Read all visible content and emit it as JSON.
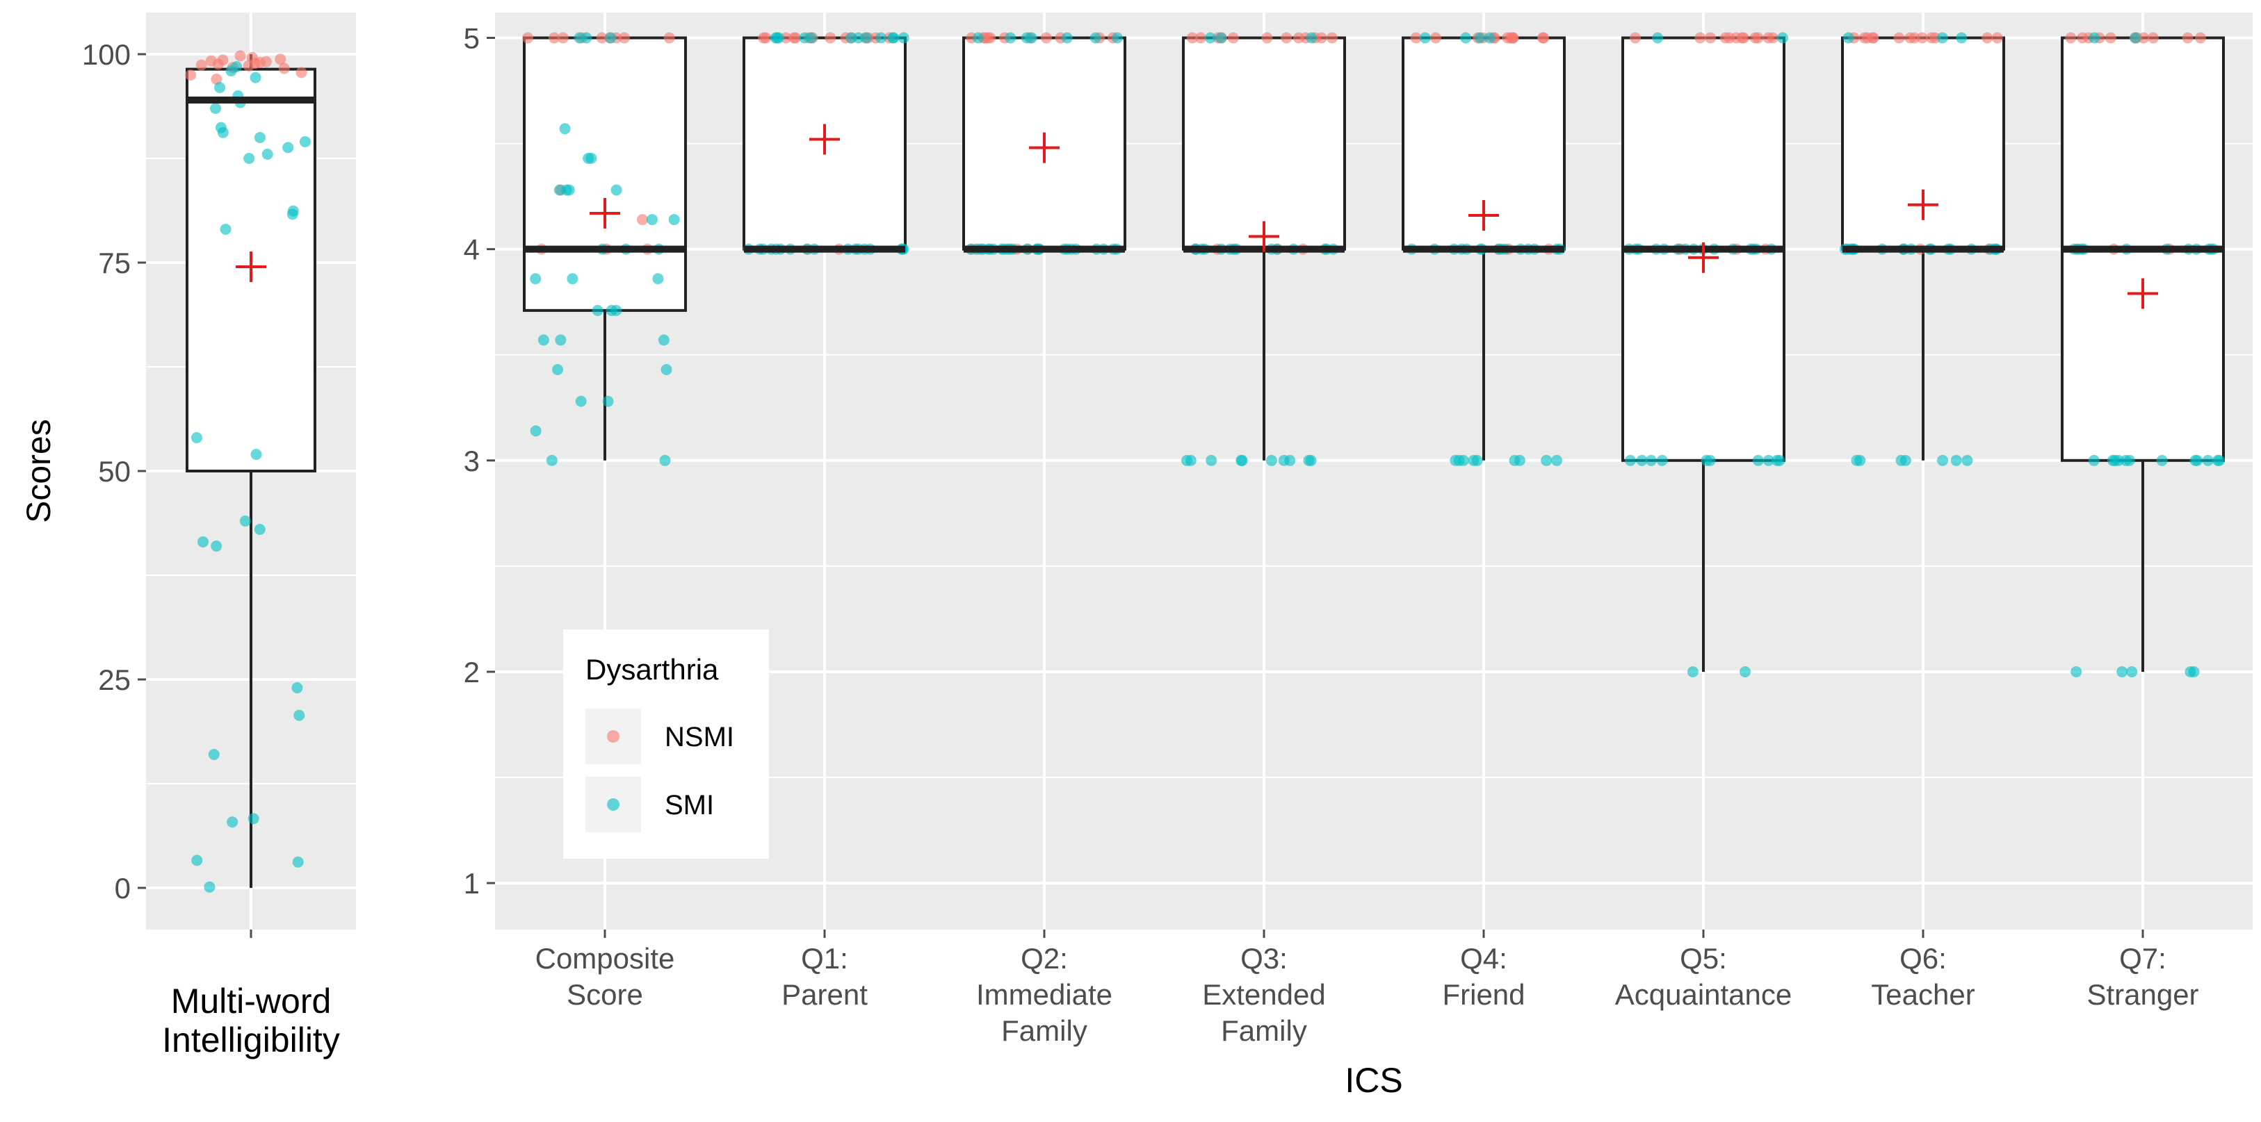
{
  "chart_data": [
    {
      "type": "box",
      "panel": "left",
      "title": "",
      "xlabel": "",
      "ylabel": "Scores",
      "ylim": [
        -5,
        105
      ],
      "yticks": [
        0,
        25,
        50,
        75,
        100
      ],
      "grid": true,
      "categories": [
        {
          "label_lines": [
            "Multi-word",
            "Intelligibility"
          ],
          "box": {
            "min": 0,
            "q1": 50,
            "median": 94.5,
            "q3": 98.2,
            "max": 100,
            "mean": 74.5
          }
        }
      ],
      "points": [
        {
          "group": "NSMI",
          "values": [
            99.2,
            98.8,
            99.0,
            98.6,
            98.9,
            99.1,
            98.4,
            97.8,
            97.5,
            97.0,
            99.4,
            99.6,
            98.7,
            98.3,
            99.3,
            99.8
          ]
        },
        {
          "group": "SMI",
          "values": [
            98.5,
            98.0,
            97.2,
            96.0,
            95.0,
            94.2,
            93.5,
            91.2,
            90.6,
            90.0,
            89.5,
            88.8,
            88.0,
            87.5,
            81.2,
            80.8,
            79.0,
            54.0,
            52.0,
            44.0,
            43.0,
            41.5,
            41.0,
            24.0,
            20.7,
            16.0,
            8.3,
            7.9,
            3.3,
            3.1,
            0.1
          ]
        }
      ]
    },
    {
      "type": "box",
      "panel": "right",
      "title": "",
      "xlabel": "ICS",
      "ylabel": "",
      "ylim": [
        0.78,
        5.12
      ],
      "yticks": [
        1,
        2,
        3,
        4,
        5
      ],
      "grid": true,
      "legend": {
        "title": "Dysarthria",
        "position": "bottom-left",
        "entries": [
          "NSMI",
          "SMI"
        ]
      },
      "categories": [
        {
          "label_lines": [
            "Composite",
            "Score"
          ],
          "box": {
            "min": 3.0,
            "q1": 3.71,
            "median": 4.0,
            "q3": 5.0,
            "max": 5.0,
            "mean": 4.17
          }
        },
        {
          "label_lines": [
            "Q1:",
            "Parent"
          ],
          "box": {
            "min": 4.0,
            "q1": 4.0,
            "median": 4.0,
            "q3": 5.0,
            "max": 5.0,
            "mean": 4.52
          }
        },
        {
          "label_lines": [
            "Q2:",
            "Immediate",
            "Family"
          ],
          "box": {
            "min": 4.0,
            "q1": 4.0,
            "median": 4.0,
            "q3": 5.0,
            "max": 5.0,
            "mean": 4.48
          }
        },
        {
          "label_lines": [
            "Q3:",
            "Extended",
            "Family"
          ],
          "box": {
            "min": 3.0,
            "q1": 4.0,
            "median": 4.0,
            "q3": 5.0,
            "max": 5.0,
            "mean": 4.06
          }
        },
        {
          "label_lines": [
            "Q4:",
            "Friend"
          ],
          "box": {
            "min": 3.0,
            "q1": 4.0,
            "median": 4.0,
            "q3": 5.0,
            "max": 5.0,
            "mean": 4.16
          }
        },
        {
          "label_lines": [
            "Q5:",
            "Acquaintance"
          ],
          "box": {
            "min": 2.0,
            "q1": 3.0,
            "median": 4.0,
            "q3": 5.0,
            "max": 5.0,
            "mean": 3.96
          }
        },
        {
          "label_lines": [
            "Q6:",
            "Teacher"
          ],
          "box": {
            "min": 3.0,
            "q1": 4.0,
            "median": 4.0,
            "q3": 5.0,
            "max": 5.0,
            "mean": 4.21
          }
        },
        {
          "label_lines": [
            "Q7:",
            "Stranger"
          ],
          "box": {
            "min": 2.0,
            "q1": 3.0,
            "median": 4.0,
            "q3": 5.0,
            "max": 5.0,
            "mean": 3.79
          }
        }
      ],
      "points": [
        {
          "category": "Composite Score",
          "group": "NSMI",
          "values": [
            5,
            5,
            5,
            5,
            5,
            5,
            5,
            5,
            5,
            4.28,
            4.14,
            4.0,
            4.0,
            4.0
          ]
        },
        {
          "category": "Composite Score",
          "group": "SMI",
          "values": [
            5,
            5,
            5,
            4.57,
            4.43,
            4.43,
            4.28,
            4.28,
            4.28,
            4.28,
            4.14,
            4.14,
            4.0,
            4.0,
            4.0,
            3.86,
            3.86,
            3.86,
            3.71,
            3.71,
            3.71,
            3.57,
            3.57,
            3.57,
            3.43,
            3.43,
            3.28,
            3.28,
            3.14,
            3.0,
            3.0
          ]
        },
        {
          "category": "Q1: Parent",
          "group": "NSMI",
          "values": [
            5,
            5,
            5,
            5,
            5,
            5,
            5,
            5,
            5,
            5,
            5,
            5,
            5,
            5,
            4,
            4
          ]
        },
        {
          "category": "Q1: Parent",
          "group": "SMI",
          "values": [
            5,
            5,
            5,
            5,
            5,
            5,
            5,
            5,
            5,
            5,
            5,
            5,
            4,
            4,
            4,
            4,
            4,
            4,
            4,
            4,
            4,
            4,
            4,
            4,
            4,
            4,
            4,
            4,
            4
          ]
        },
        {
          "category": "Q2: Immediate Family",
          "group": "NSMI",
          "values": [
            5,
            5,
            5,
            5,
            5,
            5,
            5,
            5,
            5,
            5,
            5,
            4,
            4,
            4,
            4,
            4
          ]
        },
        {
          "category": "Q2: Immediate Family",
          "group": "SMI",
          "values": [
            5,
            5,
            5,
            5,
            5,
            5,
            5,
            4,
            4,
            4,
            4,
            4,
            4,
            4,
            4,
            4,
            4,
            4,
            4,
            4,
            4,
            4,
            4,
            4,
            4,
            4,
            4,
            4,
            4,
            4,
            4,
            4
          ]
        },
        {
          "category": "Q3: Extended Family",
          "group": "NSMI",
          "values": [
            5,
            5,
            5,
            5,
            5,
            5,
            5,
            5,
            5,
            5,
            5,
            5,
            4,
            4,
            4,
            4
          ]
        },
        {
          "category": "Q3: Extended Family",
          "group": "SMI",
          "values": [
            5,
            5,
            5,
            4,
            4,
            4,
            4,
            4,
            4,
            4,
            4,
            4,
            4,
            4,
            4,
            4,
            4,
            3,
            3,
            3,
            3,
            3,
            3,
            3,
            3,
            3,
            3
          ]
        },
        {
          "category": "Q4: Friend",
          "group": "NSMI",
          "values": [
            5,
            5,
            5,
            5,
            5,
            5,
            5,
            5,
            5,
            5,
            5,
            5,
            5,
            4,
            4,
            4
          ]
        },
        {
          "category": "Q4: Friend",
          "group": "SMI",
          "values": [
            5,
            5,
            5,
            5,
            4,
            4,
            4,
            4,
            4,
            4,
            4,
            4,
            4,
            4,
            4,
            4,
            4,
            4,
            4,
            3,
            3,
            3,
            3,
            3,
            3,
            3,
            3,
            3
          ]
        },
        {
          "category": "Q5: Acquaintance",
          "group": "NSMI",
          "values": [
            5,
            5,
            5,
            5,
            5,
            5,
            5,
            5,
            5,
            5,
            5,
            5,
            4,
            4,
            4,
            4
          ]
        },
        {
          "category": "Q5: Acquaintance",
          "group": "SMI",
          "values": [
            5,
            5,
            4,
            4,
            4,
            4,
            4,
            4,
            4,
            4,
            4,
            4,
            4,
            4,
            4,
            4,
            4,
            3,
            3,
            3,
            3,
            3,
            3,
            3,
            3,
            3,
            3,
            2,
            2
          ]
        },
        {
          "category": "Q6: Teacher",
          "group": "NSMI",
          "values": [
            5,
            5,
            5,
            5,
            5,
            5,
            5,
            5,
            5,
            5,
            5,
            5,
            5,
            4,
            4,
            4
          ]
        },
        {
          "category": "Q6: Teacher",
          "group": "SMI",
          "values": [
            5,
            5,
            5,
            4,
            4,
            4,
            4,
            4,
            4,
            4,
            4,
            4,
            4,
            4,
            4,
            4,
            4,
            4,
            4,
            4,
            4,
            4,
            3,
            3,
            3,
            3,
            3,
            3,
            3
          ]
        },
        {
          "category": "Q7: Stranger",
          "group": "NSMI",
          "values": [
            5,
            5,
            5,
            5,
            5,
            5,
            5,
            5,
            5,
            5,
            5,
            4,
            4,
            4
          ]
        },
        {
          "category": "Q7: Stranger",
          "group": "SMI",
          "values": [
            5,
            5,
            4,
            4,
            4,
            4,
            4,
            4,
            4,
            4,
            4,
            4,
            4,
            3,
            3,
            3,
            3,
            3,
            3,
            3,
            3,
            3,
            3,
            3,
            3,
            2,
            2,
            2,
            2,
            2
          ]
        }
      ]
    }
  ],
  "colors": {
    "panel_bg": "#EBEBEB",
    "grid": "#FFFFFF",
    "NSMI": "#F8766D",
    "SMI": "#00BFC4",
    "mean_marker": "#E41A1C",
    "box_line": "#222222",
    "axis_text": "#4D4D4D",
    "title_text": "#000000"
  }
}
